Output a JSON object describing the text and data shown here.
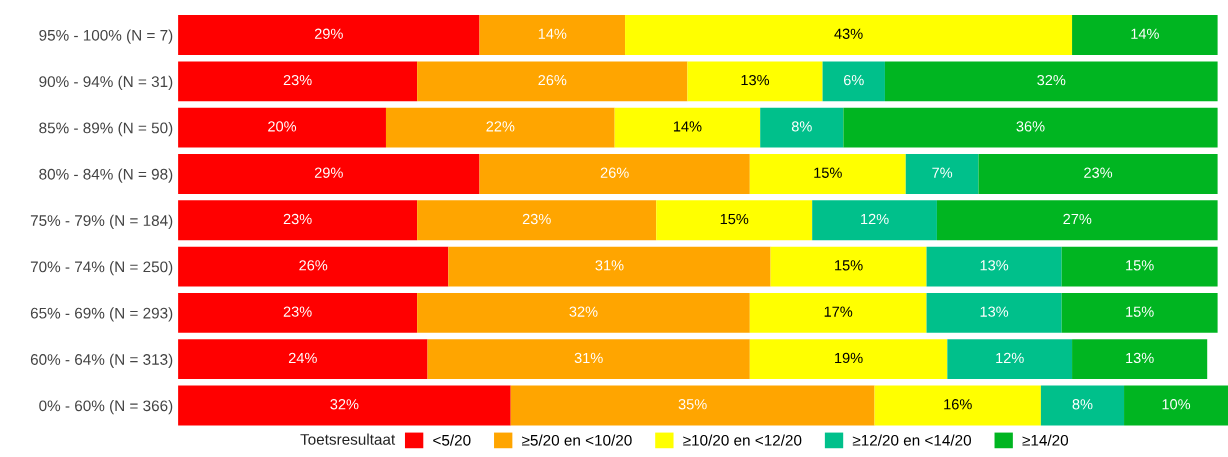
{
  "chart_data": {
    "type": "bar",
    "orientation": "horizontal",
    "stacked": true,
    "data_labels": true,
    "grid": false,
    "legend": "bottom",
    "legend_title": "Toetsresultaat",
    "categories": [
      "95% - 100% (N = 7)",
      "90% - 94% (N = 31)",
      "85% - 89% (N = 50)",
      "80% - 84% (N = 98)",
      "75% - 79% (N = 184)",
      "70% - 74% (N = 250)",
      "65% - 69% (N = 293)",
      "60% - 64% (N = 313)",
      "0% - 60% (N = 366)"
    ],
    "series": [
      {
        "name": "<5/20",
        "color": "#ff0000",
        "values": [
          29,
          23,
          20,
          29,
          23,
          26,
          23,
          24,
          32
        ],
        "value_labels": [
          "29%",
          "23%",
          "20%",
          "29%",
          "23%",
          "26%",
          "23%",
          "24%",
          "32%"
        ]
      },
      {
        "name": "≥5/20 en <10/20",
        "color": "#ffa500",
        "values": [
          14,
          26,
          22,
          26,
          23,
          31,
          32,
          31,
          35
        ],
        "value_labels": [
          "14%",
          "26%",
          "22%",
          "26%",
          "23%",
          "31%",
          "32%",
          "31%",
          "35%"
        ]
      },
      {
        "name": "≥10/20 en <12/20",
        "color": "#ffff00",
        "values": [
          43,
          13,
          14,
          15,
          15,
          15,
          17,
          19,
          16
        ],
        "value_labels": [
          "43%",
          "13%",
          "14%",
          "15%",
          "15%",
          "15%",
          "17%",
          "19%",
          "16%"
        ]
      },
      {
        "name": "≥12/20 en <14/20",
        "color": "#00c08b",
        "values": [
          null,
          6,
          8,
          7,
          12,
          13,
          13,
          12,
          8
        ],
        "value_labels": [
          null,
          "6%",
          "8%",
          "7%",
          "12%",
          "13%",
          "13%",
          "12%",
          "8%"
        ]
      },
      {
        "name": "≥14/20",
        "color": "#00b521",
        "values": [
          14,
          32,
          36,
          23,
          27,
          15,
          15,
          13,
          10
        ],
        "value_labels": [
          "14%",
          "32%",
          "36%",
          "23%",
          "27%",
          "15%",
          "15%",
          "13%",
          "10%"
        ]
      }
    ]
  }
}
